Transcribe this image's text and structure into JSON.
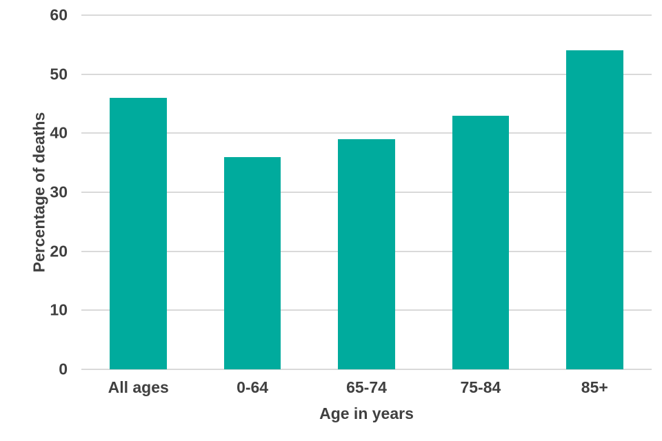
{
  "chart_data": {
    "type": "bar",
    "title": "",
    "xlabel": "Age in years",
    "ylabel": "Percentage of deaths",
    "categories": [
      "All ages",
      "0-64",
      "65-74",
      "75-84",
      "85+"
    ],
    "values": [
      46,
      36,
      39,
      43,
      54
    ],
    "ylim": [
      0,
      60
    ],
    "yticks": [
      0,
      10,
      20,
      30,
      40,
      50,
      60
    ],
    "grid": true,
    "legend": "none",
    "colors": {
      "bar": "#00AB9D",
      "gridline": "#D9D9D9",
      "axis_line": "#D9D9D9",
      "text": "#404040",
      "background": "#FFFFFF"
    }
  }
}
